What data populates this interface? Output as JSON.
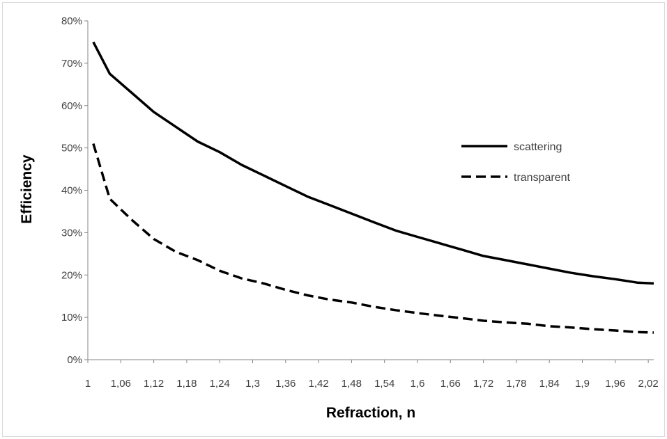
{
  "chart_data": {
    "type": "line",
    "xlabel": "Refraction, n",
    "ylabel": "Efficiency",
    "x_tick_labels": [
      "1",
      "1,06",
      "1,12",
      "1,18",
      "1,24",
      "1,3",
      "1,36",
      "1,42",
      "1,48",
      "1,54",
      "1,6",
      "1,66",
      "1,72",
      "1,78",
      "1,84",
      "1,9",
      "1,96",
      "2,02"
    ],
    "y_tick_labels": [
      "0%",
      "10%",
      "20%",
      "30%",
      "40%",
      "50%",
      "60%",
      "70%",
      "80%"
    ],
    "ylim": [
      0,
      0.8
    ],
    "xlim": [
      1.0,
      2.03
    ],
    "grid": false,
    "legend_position": "right",
    "x": [
      1.01,
      1.04,
      1.08,
      1.12,
      1.16,
      1.2,
      1.24,
      1.28,
      1.32,
      1.36,
      1.4,
      1.44,
      1.48,
      1.52,
      1.56,
      1.6,
      1.64,
      1.68,
      1.72,
      1.76,
      1.8,
      1.84,
      1.88,
      1.92,
      1.96,
      2.0,
      2.03
    ],
    "series": [
      {
        "name": "scattering",
        "style": "solid",
        "color": "#000000",
        "values": [
          0.75,
          0.675,
          0.63,
          0.585,
          0.55,
          0.515,
          0.49,
          0.46,
          0.435,
          0.41,
          0.385,
          0.365,
          0.345,
          0.325,
          0.305,
          0.29,
          0.275,
          0.26,
          0.245,
          0.235,
          0.225,
          0.215,
          0.205,
          0.197,
          0.19,
          0.182,
          0.18
        ]
      },
      {
        "name": "transparent",
        "style": "dashed",
        "color": "#000000",
        "values": [
          0.51,
          0.38,
          0.33,
          0.285,
          0.255,
          0.235,
          0.21,
          0.192,
          0.18,
          0.165,
          0.152,
          0.142,
          0.135,
          0.125,
          0.117,
          0.11,
          0.104,
          0.098,
          0.092,
          0.088,
          0.085,
          0.079,
          0.076,
          0.072,
          0.069,
          0.065,
          0.064
        ]
      }
    ]
  }
}
